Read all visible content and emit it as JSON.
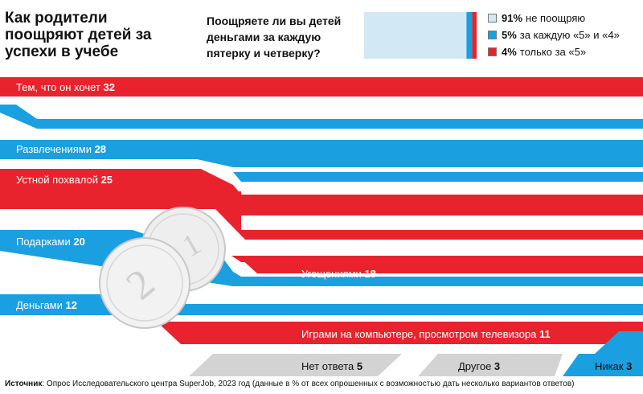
{
  "title": "Как родители поощряют детей за успехи в учебе",
  "poll": {
    "question": "Поощряете ли вы детей деньгами за каждую пятерку и четверку?",
    "items": [
      {
        "value": 91,
        "value_label": "91%",
        "label": "не поощряю",
        "color": "#d2e8f5"
      },
      {
        "value": 5,
        "value_label": "5%",
        "label": "за каждую «5» и «4»",
        "color": "#1a9fe0"
      },
      {
        "value": 4,
        "value_label": "4%",
        "label": "только за «5»",
        "color": "#e8232d"
      }
    ]
  },
  "chart_data": {
    "type": "bar",
    "title": "Как родители поощряют детей за успехи в учебе",
    "categories": [
      "Тем, что он хочет",
      "Развлечениями",
      "Устной похвалой",
      "Подарками",
      "Угощениями",
      "Деньгами",
      "Играми на компьютере, просмотром телевизора",
      "Нет ответа",
      "Другое",
      "Никак"
    ],
    "values": [
      32,
      28,
      25,
      20,
      18,
      12,
      11,
      5,
      3,
      3
    ],
    "colors": {
      "red": "#e8232d",
      "blue": "#1a9fe0",
      "gray": "#d3d3d3"
    }
  },
  "source": {
    "label": "Источник",
    "text": ": Опрос Исследовательского центра SuperJob, 2023 год (данные в % от всех опрошенных с возможностью дать несколько вариантов ответов)"
  }
}
